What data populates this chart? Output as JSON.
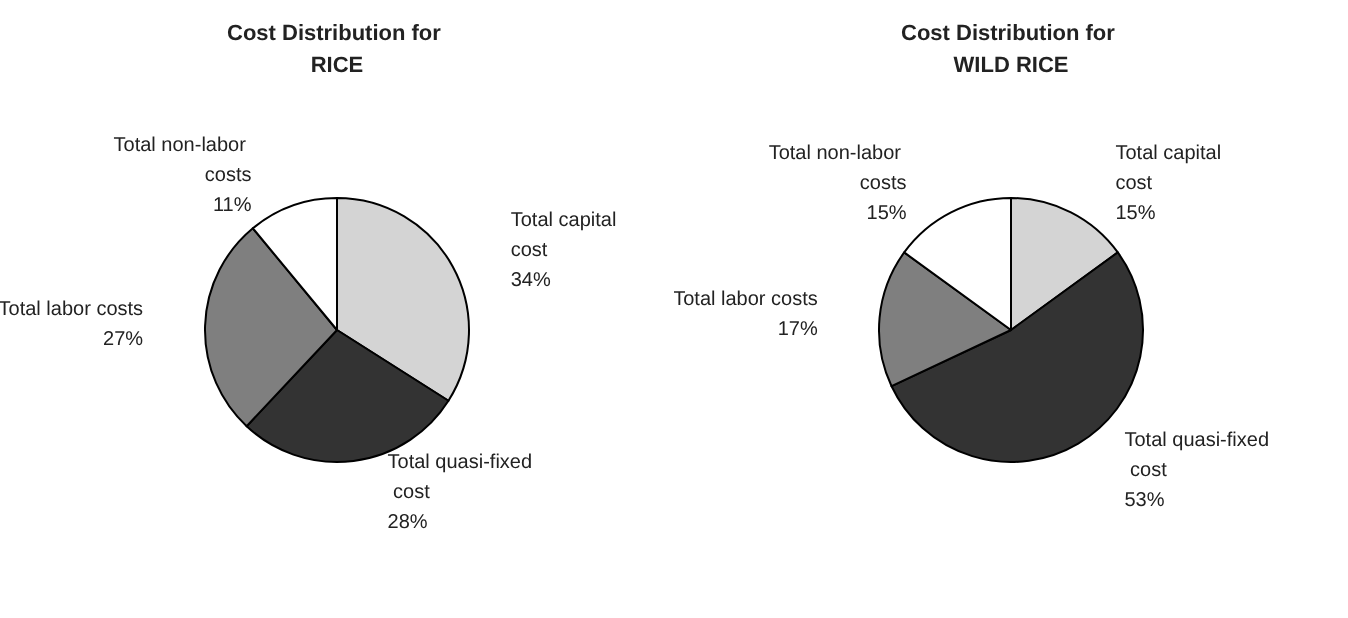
{
  "chart_data": [
    {
      "type": "pie",
      "title": "Cost Distribution for RICE",
      "categories": [
        "Total capital cost",
        "Total quasi-fixed cost",
        "Total labor costs",
        "Total non-labor costs"
      ],
      "values": [
        34,
        28,
        27,
        11
      ],
      "value_labels": [
        "34%",
        "28%",
        "27%",
        "11%"
      ],
      "colors": [
        "#d4d4d4",
        "#333333",
        "#7f7f7f",
        "#ffffff"
      ],
      "legend": false
    },
    {
      "type": "pie",
      "title": "Cost Distribution for WILD RICE",
      "categories": [
        "Total capital cost",
        "Total quasi-fixed cost",
        "Total labor costs",
        "Total non-labor costs"
      ],
      "values": [
        15,
        53,
        17,
        15
      ],
      "value_labels": [
        "15%",
        "53%",
        "17%",
        "15%"
      ],
      "colors": [
        "#d4d4d4",
        "#333333",
        "#7f7f7f",
        "#ffffff"
      ],
      "legend": false
    }
  ]
}
